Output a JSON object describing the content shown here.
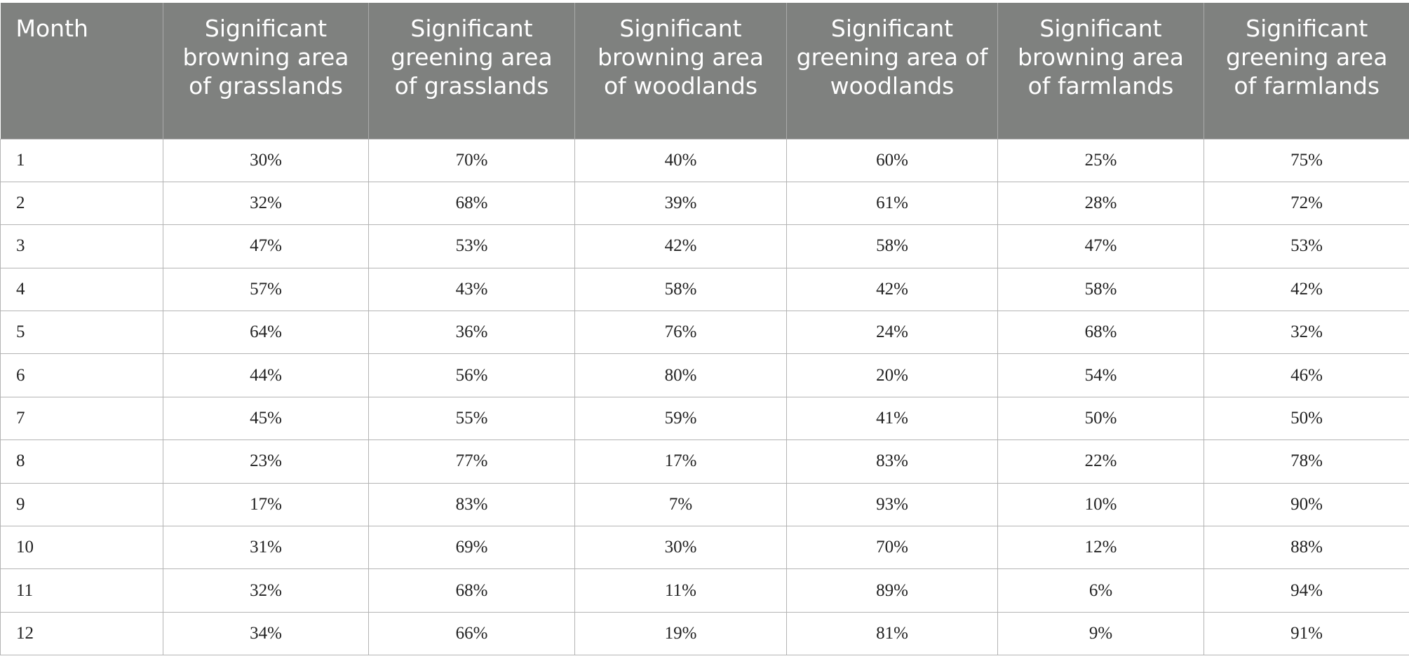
{
  "table": {
    "headers": [
      "Month",
      "Significant browning area of grasslands",
      "Significant greening area of grasslands",
      "Significant browning area of woodlands",
      "Significant greening area of woodlands",
      "Significant browning area of farmlands",
      "Significant greening area of farmlands"
    ],
    "rows": [
      [
        "1",
        "30%",
        "70%",
        "40%",
        "60%",
        "25%",
        "75%"
      ],
      [
        "2",
        "32%",
        "68%",
        "39%",
        "61%",
        "28%",
        "72%"
      ],
      [
        "3",
        "47%",
        "53%",
        "42%",
        "58%",
        "47%",
        "53%"
      ],
      [
        "4",
        "57%",
        "43%",
        "58%",
        "42%",
        "58%",
        "42%"
      ],
      [
        "5",
        "64%",
        "36%",
        "76%",
        "24%",
        "68%",
        "32%"
      ],
      [
        "6",
        "44%",
        "56%",
        "80%",
        "20%",
        "54%",
        "46%"
      ],
      [
        "7",
        "45%",
        "55%",
        "59%",
        "41%",
        "50%",
        "50%"
      ],
      [
        "8",
        "23%",
        "77%",
        "17%",
        "83%",
        "22%",
        "78%"
      ],
      [
        "9",
        "17%",
        "83%",
        "7%",
        "93%",
        "10%",
        "90%"
      ],
      [
        "10",
        "31%",
        "69%",
        "30%",
        "70%",
        "12%",
        "88%"
      ],
      [
        "11",
        "32%",
        "68%",
        "11%",
        "89%",
        "6%",
        "94%"
      ],
      [
        "12",
        "34%",
        "66%",
        "19%",
        "81%",
        "9%",
        "91%"
      ]
    ]
  }
}
